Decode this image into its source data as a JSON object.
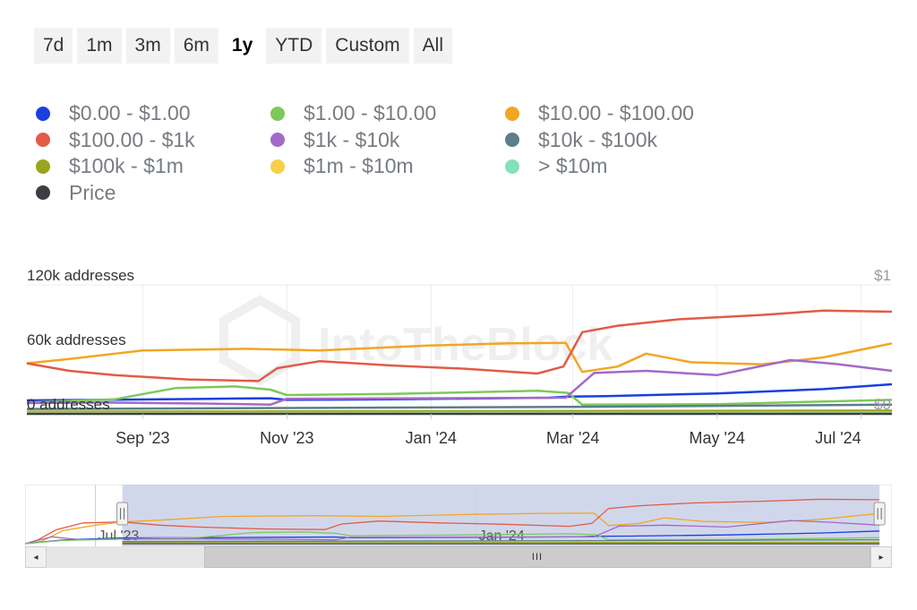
{
  "range_buttons": [
    {
      "label": "7d",
      "active": false
    },
    {
      "label": "1m",
      "active": false
    },
    {
      "label": "3m",
      "active": false
    },
    {
      "label": "6m",
      "active": false
    },
    {
      "label": "1y",
      "active": true
    },
    {
      "label": "YTD",
      "active": false
    },
    {
      "label": "Custom",
      "active": false
    },
    {
      "label": "All",
      "active": false
    }
  ],
  "legend": [
    {
      "label": "$0.00 - $1.00",
      "color": "#1a3fe0"
    },
    {
      "label": "$1.00 - $10.00",
      "color": "#7cc95a"
    },
    {
      "label": "$10.00 - $100.00",
      "color": "#f2a623"
    },
    {
      "label": "$100.00 - $1k",
      "color": "#e25b47"
    },
    {
      "label": "$1k - $10k",
      "color": "#a26ac8"
    },
    {
      "label": "$10k - $100k",
      "color": "#5b7d8c"
    },
    {
      "label": "$100k - $1m",
      "color": "#9aa41d"
    },
    {
      "label": "$1m - $10m",
      "color": "#f7cf48"
    },
    {
      "label": "> $10m",
      "color": "#85e0bb"
    },
    {
      "label": "Price",
      "color": "#3b3f44"
    }
  ],
  "chart_data": {
    "type": "line",
    "title": "",
    "xlabel": "",
    "ylabel": "",
    "y_unit": "addresses",
    "ylim": [
      0,
      120000
    ],
    "y_ticks": [
      0,
      60000,
      120000
    ],
    "y_tick_labels": [
      "0 addresses",
      "60k addresses",
      "120k addresses"
    ],
    "y2_label": "$1",
    "y2_bottom_label": "$0",
    "x_range": [
      "2023-07-14",
      "2024-07-14"
    ],
    "x_ticks": [
      "2023-09-01",
      "2023-11-01",
      "2024-01-01",
      "2024-03-01",
      "2024-05-01",
      "2024-07-01"
    ],
    "x_tick_labels": [
      "Sep '23",
      "Nov '23",
      "Jan '24",
      "Mar '24",
      "May '24",
      "Jul '24"
    ],
    "grid": "vertical",
    "legend_position": "top",
    "series": [
      {
        "name": "$0.00 - $1.00",
        "color": "#1a3fe0",
        "x": [
          "2023-07-14",
          "2023-08-15",
          "2023-09-30",
          "2023-10-25",
          "2023-11-01",
          "2023-12-15",
          "2024-02-20",
          "2024-02-28",
          "2024-03-15",
          "2024-05-01",
          "2024-06-15",
          "2024-07-14"
        ],
        "y": [
          12500,
          13000,
          14000,
          14500,
          13000,
          13500,
          15000,
          16000,
          16500,
          19000,
          23000,
          27500
        ]
      },
      {
        "name": "$1.00 - $10.00",
        "color": "#7cc95a",
        "x": [
          "2023-07-14",
          "2023-08-01",
          "2023-08-20",
          "2023-09-15",
          "2023-10-10",
          "2023-10-25",
          "2023-11-01",
          "2023-12-15",
          "2024-02-15",
          "2024-02-28",
          "2024-03-05",
          "2024-05-01",
          "2024-07-14"
        ],
        "y": [
          10500,
          12000,
          13500,
          24000,
          25500,
          22500,
          17500,
          18500,
          21500,
          19500,
          8500,
          9000,
          13000
        ]
      },
      {
        "name": "$10.00 - $100.00",
        "color": "#f2a623",
        "x": [
          "2023-07-14",
          "2023-08-01",
          "2023-09-01",
          "2023-10-15",
          "2023-11-15",
          "2023-12-31",
          "2024-02-01",
          "2024-02-27",
          "2024-03-05",
          "2024-03-20",
          "2024-04-01",
          "2024-04-20",
          "2024-05-20",
          "2024-06-15",
          "2024-07-14"
        ],
        "y": [
          47000,
          51000,
          59000,
          60500,
          59000,
          63500,
          65500,
          66000,
          39000,
          44000,
          56000,
          48000,
          46000,
          52500,
          65500
        ]
      },
      {
        "name": "$100.00 - $1k",
        "color": "#e25b47",
        "x": [
          "2023-07-14",
          "2023-08-01",
          "2023-08-20",
          "2023-09-20",
          "2023-10-20",
          "2023-10-28",
          "2023-11-15",
          "2023-12-15",
          "2024-01-15",
          "2024-02-15",
          "2024-02-26",
          "2024-03-05",
          "2024-03-20",
          "2024-04-15",
          "2024-05-20",
          "2024-06-15",
          "2024-07-14"
        ],
        "y": [
          47000,
          40000,
          36000,
          32000,
          30500,
          42500,
          49000,
          45000,
          42000,
          37500,
          44000,
          76000,
          82000,
          88000,
          92000,
          96000,
          95000
        ]
      },
      {
        "name": "$1k - $10k",
        "color": "#a26ac8",
        "x": [
          "2023-07-14",
          "2023-08-15",
          "2023-09-30",
          "2023-10-25",
          "2023-11-01",
          "2023-12-31",
          "2024-02-27",
          "2024-03-10",
          "2024-04-01",
          "2024-05-01",
          "2024-06-01",
          "2024-06-20",
          "2024-07-14"
        ],
        "y": [
          10000,
          10500,
          9500,
          8500,
          14000,
          14500,
          15000,
          38000,
          40000,
          36000,
          50000,
          46500,
          40000
        ]
      },
      {
        "name": "$10k - $100k",
        "color": "#5b7d8c",
        "x": [
          "2023-07-14",
          "2024-02-28",
          "2024-07-14"
        ],
        "y": [
          4500,
          6500,
          8500
        ]
      },
      {
        "name": "$100k - $1m",
        "color": "#9aa41d",
        "x": [
          "2023-07-14",
          "2024-07-14"
        ],
        "y": [
          2000,
          3000
        ]
      },
      {
        "name": "$1m - $10m",
        "color": "#f7cf48",
        "x": [
          "2023-07-14",
          "2024-07-14"
        ],
        "y": [
          800,
          1000
        ]
      },
      {
        "name": "> $10m",
        "color": "#85e0bb",
        "x": [
          "2023-07-14",
          "2024-07-14"
        ],
        "y": [
          300,
          400
        ]
      },
      {
        "name": "Price",
        "color": "#3b3f44",
        "x": [
          "2023-07-14",
          "2024-07-14"
        ],
        "y": [
          0,
          0
        ]
      }
    ],
    "navigator": {
      "x_range": [
        "2023-05-28",
        "2024-07-20"
      ],
      "selected_range": [
        "2023-07-14",
        "2024-07-14"
      ],
      "x_ticks": [
        "2023-07-01",
        "2024-01-01"
      ],
      "x_tick_labels": [
        "Jul '23",
        "Jan '24"
      ],
      "pre_series": [
        {
          "color": "#e25b47",
          "x": [
            "2023-05-28",
            "2023-06-03",
            "2023-06-12",
            "2023-06-25",
            "2023-07-14"
          ],
          "y": [
            0,
            8000,
            30000,
            45000,
            47000
          ]
        },
        {
          "color": "#f2a623",
          "x": [
            "2023-05-28",
            "2023-06-05",
            "2023-06-15",
            "2023-07-01",
            "2023-07-14"
          ],
          "y": [
            0,
            5000,
            28000,
            40000,
            47000
          ]
        },
        {
          "color": "#a26ac8",
          "x": [
            "2023-05-28",
            "2023-06-10",
            "2023-06-25",
            "2023-07-14"
          ],
          "y": [
            0,
            15000,
            8000,
            10000
          ]
        },
        {
          "color": "#1a3fe0",
          "x": [
            "2023-05-28",
            "2023-06-15",
            "2023-07-14"
          ],
          "y": [
            0,
            8000,
            12500
          ]
        },
        {
          "color": "#7cc95a",
          "x": [
            "2023-05-28",
            "2023-06-15",
            "2023-07-14"
          ],
          "y": [
            0,
            7000,
            10500
          ]
        }
      ]
    }
  },
  "scrollbar": {
    "left_arrow": "◂",
    "right_arrow": "▸",
    "thumb_grip": "III"
  },
  "watermark": "IntoTheBlock"
}
